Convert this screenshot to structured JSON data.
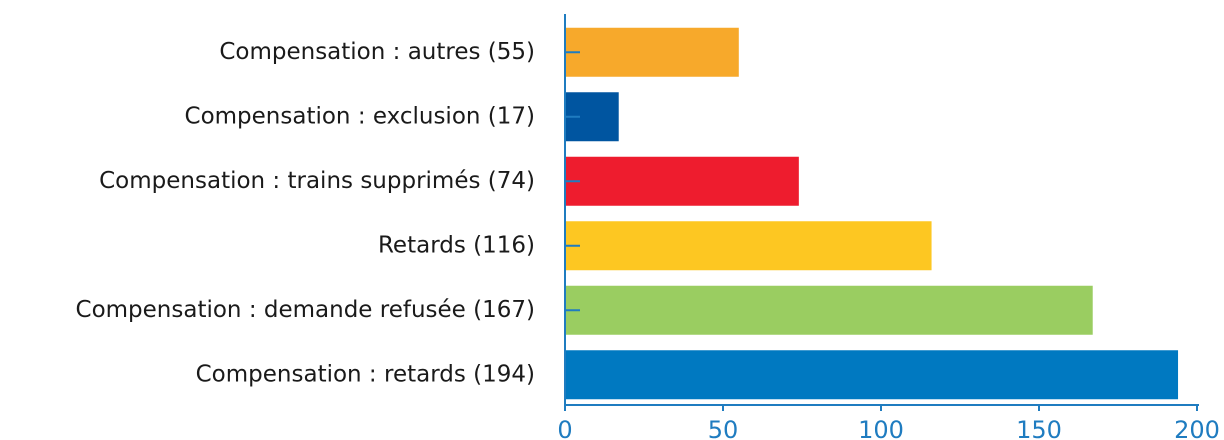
{
  "chart_data": {
    "type": "bar",
    "orientation": "horizontal",
    "categories": [
      "Compensation : autres (55)",
      "Compensation : exclusion (17)",
      "Compensation : trains supprimés (74)",
      "Retards (116)",
      "Compensation : demande refusée (167)",
      "Compensation : retards (194)"
    ],
    "values": [
      55,
      17,
      74,
      116,
      167,
      194
    ],
    "colors": [
      "#f7a92b",
      "#0055a0",
      "#ee1c2e",
      "#fdc722",
      "#9acd61",
      "#0079c1"
    ],
    "xlim": [
      0,
      200
    ],
    "xticks": [
      0,
      50,
      100,
      150,
      200
    ]
  }
}
